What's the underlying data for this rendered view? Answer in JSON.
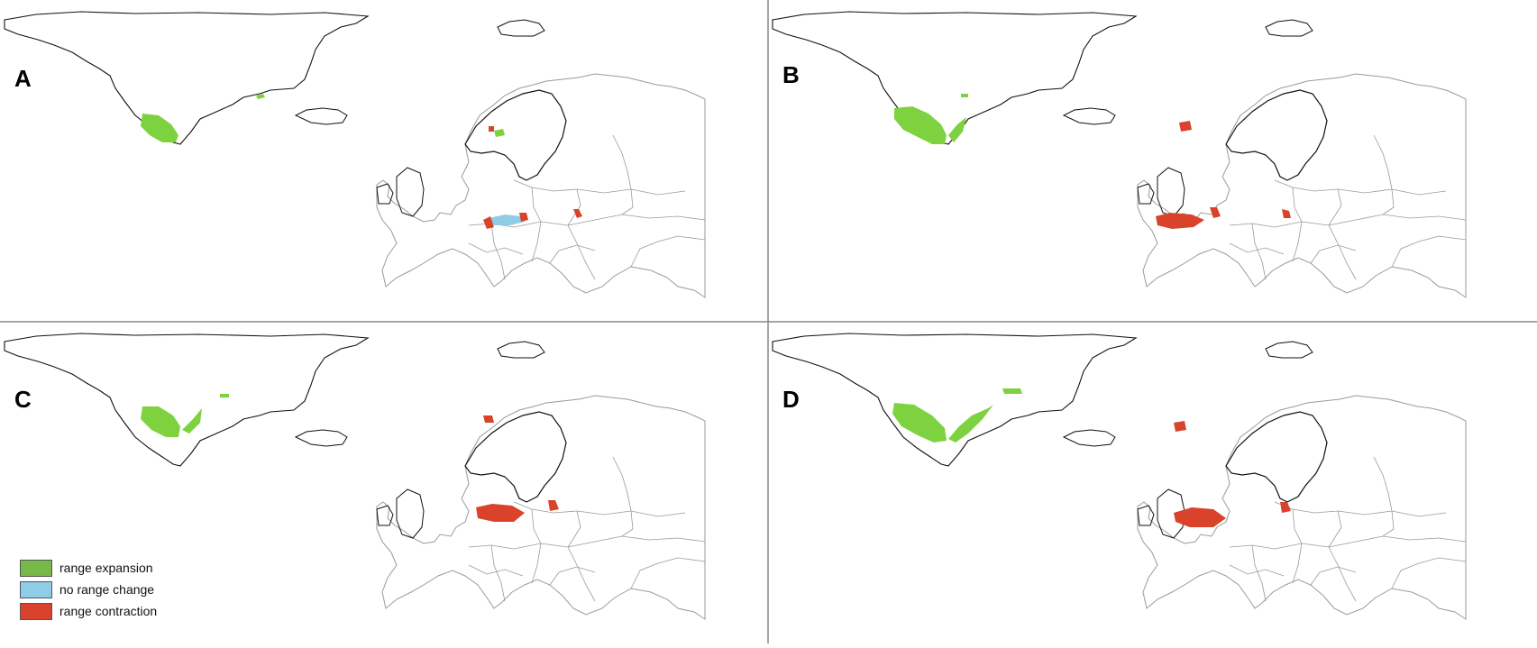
{
  "figure": {
    "panels": [
      {
        "id": "A",
        "label": "A"
      },
      {
        "id": "B",
        "label": "B"
      },
      {
        "id": "C",
        "label": "C"
      },
      {
        "id": "D",
        "label": "D"
      }
    ],
    "legend": {
      "items": [
        {
          "key": "expansion",
          "label": "range expansion",
          "color": "#76b947"
        },
        {
          "key": "nochange",
          "label": "no range change",
          "color": "#8fcde6"
        },
        {
          "key": "contraction",
          "label": "range contraction",
          "color": "#d9432c"
        }
      ]
    },
    "colors": {
      "coastline": "#111111",
      "borders": "#9a9a9a",
      "divider": "#888888",
      "expansion_fill": "#7ed23f",
      "nochange_fill": "#8fcde6",
      "contraction_fill": "#d9432c"
    }
  }
}
